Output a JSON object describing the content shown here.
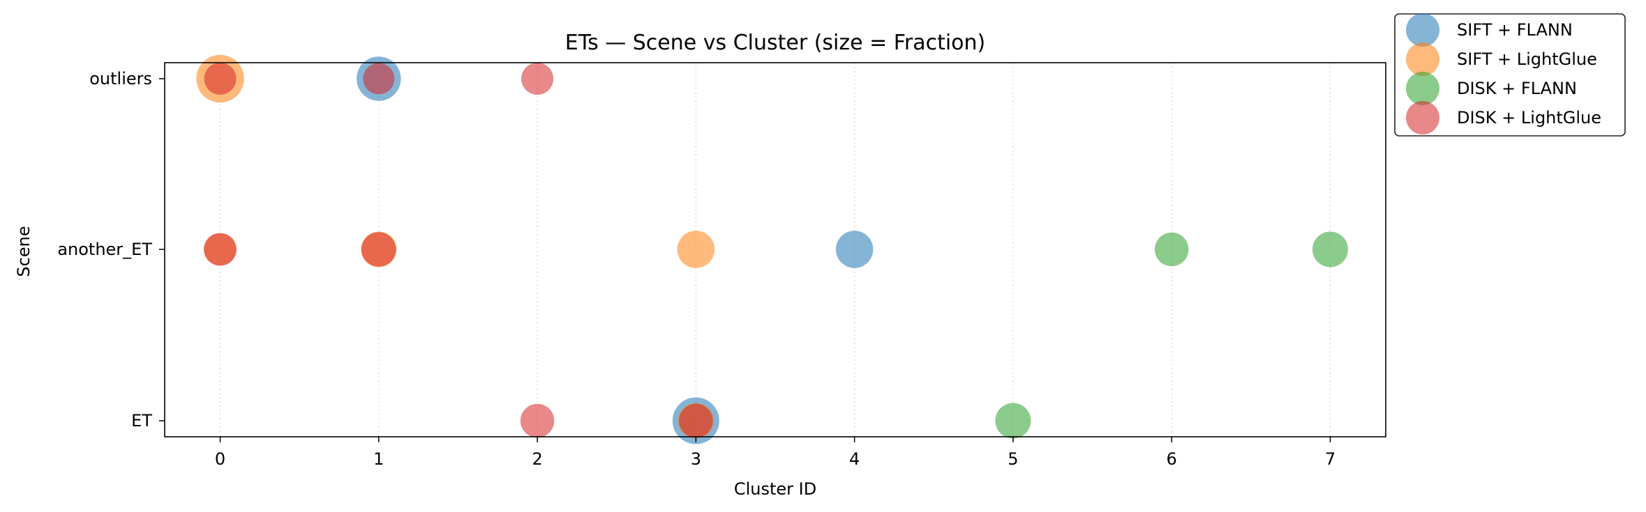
{
  "chart_data": {
    "type": "scatter",
    "title": "ETs — Scene vs Cluster (size = Fraction)",
    "xlabel": "Cluster ID",
    "ylabel": "Scene",
    "xlim": [
      -0.35,
      7.35
    ],
    "x_ticks": [
      0,
      1,
      2,
      3,
      4,
      5,
      6,
      7
    ],
    "y_categories": [
      "ET",
      "another_ET",
      "outliers"
    ],
    "grid": "vertical dotted",
    "legend_position": "outside top-right",
    "series": [
      {
        "name": "SIFT + FLANN",
        "color": "#1f77b4",
        "points": [
          {
            "x": 1,
            "y": "outliers",
            "fraction": 0.55
          },
          {
            "x": 4,
            "y": "another_ET",
            "fraction": 0.35
          },
          {
            "x": 3,
            "y": "ET",
            "fraction": 0.62
          }
        ]
      },
      {
        "name": "SIFT + LightGlue",
        "color": "#ff7f0e",
        "points": [
          {
            "x": 0,
            "y": "outliers",
            "fraction": 0.65
          },
          {
            "x": 0,
            "y": "another_ET",
            "fraction": 0.2
          },
          {
            "x": 1,
            "y": "another_ET",
            "fraction": 0.3
          },
          {
            "x": 3,
            "y": "another_ET",
            "fraction": 0.35
          },
          {
            "x": 3,
            "y": "ET",
            "fraction": 0.3
          }
        ]
      },
      {
        "name": "DISK + FLANN",
        "color": "#2ca02c",
        "points": [
          {
            "x": 6,
            "y": "another_ET",
            "fraction": 0.25
          },
          {
            "x": 7,
            "y": "another_ET",
            "fraction": 0.3
          },
          {
            "x": 5,
            "y": "ET",
            "fraction": 0.3
          }
        ]
      },
      {
        "name": "DISK + LightGlue",
        "color": "#d62728",
        "points": [
          {
            "x": 0,
            "y": "outliers",
            "fraction": 0.2
          },
          {
            "x": 1,
            "y": "outliers",
            "fraction": 0.18
          },
          {
            "x": 2,
            "y": "outliers",
            "fraction": 0.2
          },
          {
            "x": 0,
            "y": "another_ET",
            "fraction": 0.22
          },
          {
            "x": 1,
            "y": "another_ET",
            "fraction": 0.27
          },
          {
            "x": 2,
            "y": "ET",
            "fraction": 0.25
          },
          {
            "x": 3,
            "y": "ET",
            "fraction": 0.25
          }
        ]
      }
    ]
  }
}
